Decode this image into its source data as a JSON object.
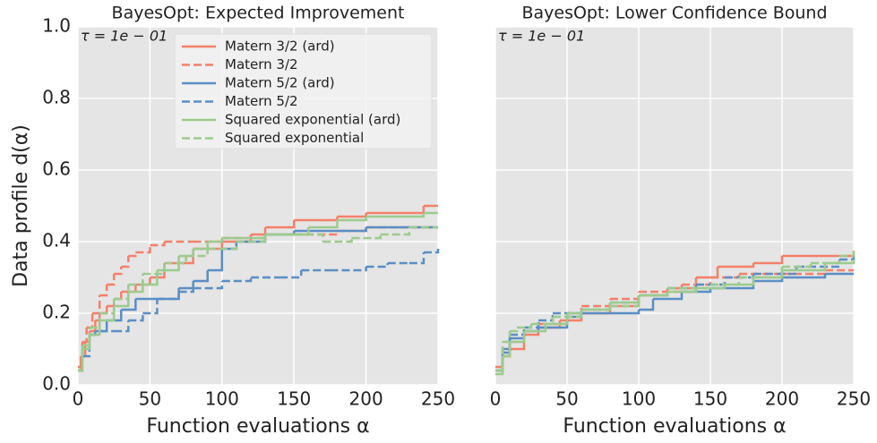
{
  "chart_data": [
    {
      "type": "line",
      "step": "post",
      "title": "BayesOpt: Expected Improvement",
      "annotation": "τ = 1e − 01",
      "xlabel": "Function evaluations α",
      "ylabel": "Data profile d(α)",
      "xlim": [
        0,
        250
      ],
      "ylim": [
        0,
        1
      ],
      "xticks": [
        0,
        50,
        100,
        150,
        200,
        250
      ],
      "yticks": [
        {
          "value": 0,
          "label": "0.0"
        },
        0.2,
        0.4,
        0.6,
        0.8,
        {
          "value": 1,
          "label": "1.0"
        }
      ],
      "grid": true,
      "background": "#e5e5e5",
      "legend": "upper left",
      "series": [
        {
          "name": "Matern 3/2 (ard)",
          "color": "#f4806b",
          "dash": "solid",
          "x": [
            0,
            2,
            5,
            8,
            12,
            15,
            20,
            25,
            30,
            40,
            50,
            60,
            80,
            100,
            120,
            130,
            150,
            170,
            180,
            200,
            220,
            240,
            250
          ],
          "values": [
            0.04,
            0.08,
            0.12,
            0.15,
            0.18,
            0.2,
            0.22,
            0.24,
            0.26,
            0.28,
            0.3,
            0.34,
            0.38,
            0.4,
            0.42,
            0.44,
            0.46,
            0.46,
            0.47,
            0.48,
            0.48,
            0.5,
            0.5
          ]
        },
        {
          "name": "Matern 3/2",
          "color": "#f4806b",
          "dash": "dashed",
          "x": [
            0,
            3,
            6,
            10,
            15,
            20,
            25,
            30,
            35,
            40,
            50,
            60,
            80,
            100,
            130,
            150,
            180,
            200,
            250
          ],
          "values": [
            0.05,
            0.12,
            0.16,
            0.2,
            0.25,
            0.28,
            0.31,
            0.33,
            0.36,
            0.37,
            0.39,
            0.4,
            0.4,
            0.41,
            0.42,
            0.42,
            0.43,
            0.44,
            0.44
          ]
        },
        {
          "name": "Matern 5/2 (ard)",
          "color": "#5b8ec4",
          "dash": "solid",
          "x": [
            0,
            3,
            8,
            12,
            20,
            30,
            40,
            55,
            70,
            80,
            90,
            100,
            110,
            130,
            150,
            200,
            250
          ],
          "values": [
            0.04,
            0.1,
            0.14,
            0.15,
            0.18,
            0.21,
            0.24,
            0.24,
            0.27,
            0.29,
            0.32,
            0.38,
            0.4,
            0.42,
            0.43,
            0.44,
            0.44
          ]
        },
        {
          "name": "Matern 5/2",
          "color": "#5b8ec4",
          "dash": "dashed",
          "x": [
            0,
            3,
            8,
            15,
            25,
            35,
            45,
            55,
            70,
            80,
            100,
            120,
            140,
            155,
            175,
            200,
            215,
            230,
            240,
            250
          ],
          "values": [
            0.04,
            0.08,
            0.14,
            0.15,
            0.15,
            0.18,
            0.2,
            0.24,
            0.26,
            0.27,
            0.29,
            0.3,
            0.3,
            0.32,
            0.32,
            0.33,
            0.34,
            0.34,
            0.37,
            0.38
          ]
        },
        {
          "name": "Squared exponential (ard)",
          "color": "#9ccb8e",
          "dash": "solid",
          "x": [
            0,
            3,
            8,
            15,
            25,
            35,
            45,
            55,
            70,
            80,
            90,
            100,
            110,
            130,
            160,
            180,
            200,
            240,
            250
          ],
          "values": [
            0.04,
            0.1,
            0.14,
            0.18,
            0.22,
            0.26,
            0.28,
            0.32,
            0.36,
            0.38,
            0.4,
            0.41,
            0.41,
            0.42,
            0.44,
            0.46,
            0.47,
            0.48,
            0.48
          ]
        },
        {
          "name": "Squared exponential",
          "color": "#9ccb8e",
          "dash": "dashed",
          "x": [
            0,
            3,
            8,
            15,
            25,
            35,
            45,
            60,
            75,
            90,
            110,
            130,
            150,
            170,
            190,
            210,
            230,
            250
          ],
          "values": [
            0.04,
            0.11,
            0.16,
            0.2,
            0.24,
            0.28,
            0.31,
            0.34,
            0.36,
            0.38,
            0.4,
            0.42,
            0.42,
            0.4,
            0.41,
            0.42,
            0.44,
            0.44
          ]
        }
      ]
    },
    {
      "type": "line",
      "step": "post",
      "title": "BayesOpt: Lower Confidence Bound",
      "annotation": "τ = 1e − 01",
      "xlabel": "Function evaluations α",
      "sharey": true,
      "xlim": [
        0,
        250
      ],
      "ylim": [
        0,
        1
      ],
      "xticks": [
        0,
        50,
        100,
        150,
        200,
        250
      ],
      "yticks": [
        0,
        0.2,
        0.4,
        0.6,
        0.8,
        1
      ],
      "grid": true,
      "background": "#e5e5e5",
      "series": [
        {
          "color": "#f4806b",
          "dash": "solid",
          "x": [
            0,
            5,
            10,
            20,
            30,
            45,
            60,
            80,
            100,
            120,
            140,
            155,
            180,
            200,
            230,
            250
          ],
          "values": [
            0.05,
            0.08,
            0.1,
            0.14,
            0.16,
            0.18,
            0.2,
            0.22,
            0.25,
            0.27,
            0.3,
            0.33,
            0.34,
            0.36,
            0.36,
            0.37
          ]
        },
        {
          "color": "#f4806b",
          "dash": "dashed",
          "x": [
            0,
            5,
            10,
            20,
            30,
            50,
            60,
            80,
            100,
            130,
            150,
            170,
            200,
            230,
            250
          ],
          "values": [
            0.04,
            0.08,
            0.12,
            0.15,
            0.17,
            0.2,
            0.22,
            0.24,
            0.26,
            0.28,
            0.3,
            0.31,
            0.31,
            0.32,
            0.32
          ]
        },
        {
          "color": "#5b8ec4",
          "dash": "solid",
          "x": [
            0,
            5,
            10,
            20,
            30,
            50,
            60,
            80,
            100,
            110,
            130,
            150,
            180,
            200,
            230,
            250
          ],
          "values": [
            0.04,
            0.09,
            0.13,
            0.15,
            0.16,
            0.19,
            0.2,
            0.2,
            0.21,
            0.24,
            0.26,
            0.27,
            0.29,
            0.3,
            0.31,
            0.31
          ]
        },
        {
          "color": "#5b8ec4",
          "dash": "dashed",
          "x": [
            0,
            5,
            10,
            20,
            30,
            40,
            60,
            80,
            100,
            120,
            140,
            160,
            180,
            210,
            240,
            250
          ],
          "values": [
            0.04,
            0.1,
            0.14,
            0.16,
            0.18,
            0.2,
            0.21,
            0.23,
            0.25,
            0.27,
            0.28,
            0.3,
            0.31,
            0.33,
            0.35,
            0.36
          ]
        },
        {
          "color": "#9ccb8e",
          "dash": "solid",
          "x": [
            0,
            5,
            10,
            20,
            35,
            50,
            60,
            80,
            100,
            120,
            140,
            160,
            180,
            200,
            230,
            250
          ],
          "values": [
            0.03,
            0.08,
            0.12,
            0.15,
            0.17,
            0.2,
            0.21,
            0.23,
            0.25,
            0.26,
            0.27,
            0.28,
            0.3,
            0.32,
            0.34,
            0.35
          ]
        },
        {
          "color": "#9ccb8e",
          "dash": "dashed",
          "x": [
            0,
            5,
            10,
            15,
            25,
            40,
            60,
            80,
            100,
            120,
            150,
            170,
            200,
            220,
            240,
            250
          ],
          "values": [
            0.04,
            0.12,
            0.15,
            0.16,
            0.17,
            0.19,
            0.21,
            0.22,
            0.25,
            0.27,
            0.28,
            0.3,
            0.33,
            0.34,
            0.36,
            0.38
          ]
        }
      ]
    }
  ]
}
